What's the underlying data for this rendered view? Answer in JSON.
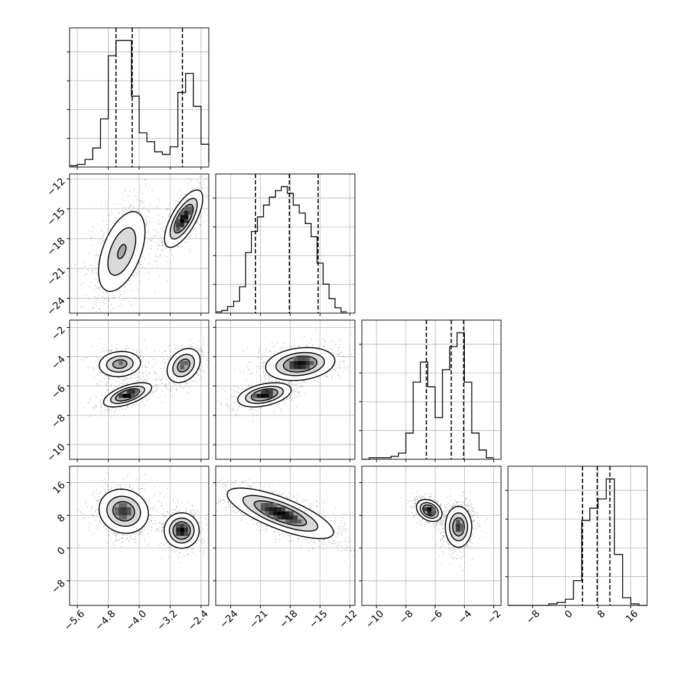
{
  "chart_data": {
    "type": "corner",
    "parameters": 4,
    "grid": true,
    "axes": [
      {
        "index": 0,
        "range": [
          -5.8,
          -2.2
        ],
        "ticks": [
          -5.6,
          -4.8,
          -4.0,
          -3.2,
          -2.4
        ],
        "tick_labels": [
          "−5.6",
          "−4.8",
          "−4.0",
          "−3.2",
          "−2.4"
        ]
      },
      {
        "index": 1,
        "range": [
          -25.5,
          -11.5
        ],
        "ticks": [
          -24,
          -21,
          -18,
          -15,
          -12
        ],
        "tick_labels": [
          "−24",
          "−21",
          "−18",
          "−15",
          "−12"
        ]
      },
      {
        "index": 2,
        "range": [
          -11.0,
          -1.5
        ],
        "ticks": [
          -10,
          -8,
          -6,
          -4,
          -2
        ],
        "tick_labels": [
          "−10",
          "−8",
          "−6",
          "−4",
          "−2"
        ]
      },
      {
        "index": 3,
        "range": [
          -14,
          20
        ],
        "ticks": [
          -8,
          0,
          8,
          16
        ],
        "tick_labels": [
          "−8",
          "0",
          "8",
          "16"
        ]
      }
    ],
    "histograms": [
      {
        "param": 0,
        "bins": [
          -5.8,
          -5.6,
          -5.4,
          -5.2,
          -5.0,
          -4.8,
          -4.6,
          -4.4,
          -4.2,
          -4.0,
          -3.8,
          -3.6,
          -3.4,
          -3.2,
          -3.0,
          -2.8,
          -2.6,
          -2.4,
          -2.2
        ],
        "counts": [
          1,
          2,
          6,
          15,
          38,
          88,
          100,
          100,
          56,
          27,
          20,
          12,
          10,
          16,
          59,
          74,
          48,
          18,
          4
        ],
        "quantiles": [
          -4.6,
          -4.18,
          -2.88
        ]
      },
      {
        "param": 1,
        "bins": [
          -25.5,
          -24.9,
          -24.3,
          -23.7,
          -23.1,
          -22.5,
          -21.9,
          -21.3,
          -20.7,
          -20.1,
          -19.5,
          -18.9,
          -18.3,
          -17.7,
          -17.1,
          -16.5,
          -15.9,
          -15.3,
          -14.7,
          -14.1,
          -13.5,
          -12.9,
          -12.3
        ],
        "counts": [
          1,
          2,
          5,
          9,
          20,
          46,
          62,
          73,
          82,
          88,
          93,
          96,
          91,
          82,
          76,
          68,
          58,
          38,
          22,
          11,
          4,
          1
        ],
        "quantiles": [
          -21.5,
          -18.1,
          -15.2
        ]
      },
      {
        "param": 2,
        "bins": [
          -11.0,
          -10.5,
          -10.0,
          -9.5,
          -9.0,
          -8.5,
          -8.0,
          -7.5,
          -7.0,
          -6.5,
          -6.0,
          -5.5,
          -5.0,
          -4.5,
          -4.0,
          -3.5,
          -3.0,
          -2.5,
          -2.0
        ],
        "counts": [
          0,
          1,
          1,
          1,
          2,
          4,
          17,
          50,
          63,
          47,
          27,
          58,
          73,
          82,
          50,
          17,
          6,
          1
        ],
        "quantiles": [
          -6.6,
          -4.9,
          -4.05
        ]
      },
      {
        "param": 3,
        "bins": [
          -14,
          -12,
          -10,
          -8,
          -6,
          -4,
          -2,
          0,
          2,
          4,
          6,
          8,
          10,
          12,
          14,
          16,
          18,
          20
        ],
        "counts": [
          0,
          0,
          0,
          0,
          0,
          1,
          2,
          4,
          16,
          55,
          63,
          69,
          82,
          33,
          5,
          1,
          0
        ],
        "quantiles": [
          4.2,
          7.8,
          10.9
        ]
      }
    ],
    "joint": [
      {
        "x": 0,
        "y": 1,
        "blobs": [
          {
            "cx": -4.45,
            "cy": -19.3,
            "sx": 0.33,
            "sy": 2.2,
            "rho": 0.5,
            "w": 0.62
          },
          {
            "cx": -2.85,
            "cy": -16.0,
            "sx": 0.24,
            "sy": 1.4,
            "rho": 0.7,
            "w": 0.38
          }
        ]
      },
      {
        "x": 0,
        "y": 2,
        "blobs": [
          {
            "cx": -4.5,
            "cy": -4.5,
            "sx": 0.28,
            "sy": 0.45,
            "rho": 0.1,
            "w": 0.32
          },
          {
            "cx": -4.3,
            "cy": -6.6,
            "sx": 0.3,
            "sy": 0.4,
            "rho": 0.6,
            "w": 0.34
          },
          {
            "cx": -2.85,
            "cy": -4.6,
            "sx": 0.22,
            "sy": 0.6,
            "rho": 0.3,
            "w": 0.34
          }
        ]
      },
      {
        "x": 1,
        "y": 2,
        "blobs": [
          {
            "cx": -17.0,
            "cy": -4.5,
            "sx": 1.7,
            "sy": 0.55,
            "rho": 0.2,
            "w": 0.65
          },
          {
            "cx": -20.6,
            "cy": -6.6,
            "sx": 1.3,
            "sy": 0.4,
            "rho": 0.4,
            "w": 0.35
          }
        ]
      },
      {
        "x": 0,
        "y": 3,
        "blobs": [
          {
            "cx": -4.4,
            "cy": 9.0,
            "sx": 0.32,
            "sy": 2.7,
            "rho": -0.1,
            "w": 0.62
          },
          {
            "cx": -2.9,
            "cy": 4.3,
            "sx": 0.22,
            "sy": 2.1,
            "rho": 0.0,
            "w": 0.38
          }
        ]
      },
      {
        "x": 1,
        "y": 3,
        "blobs": [
          {
            "cx": -19.0,
            "cy": 8.5,
            "sx": 2.6,
            "sy": 3.0,
            "rho": -0.75,
            "w": 1.0
          }
        ]
      },
      {
        "x": 2,
        "y": 3,
        "blobs": [
          {
            "cx": -6.4,
            "cy": 9.2,
            "sx": 0.42,
            "sy": 1.3,
            "rho": -0.3,
            "w": 0.35
          },
          {
            "cx": -4.4,
            "cy": 5.2,
            "sx": 0.45,
            "sy": 2.5,
            "rho": 0.0,
            "w": 0.65
          }
        ]
      }
    ],
    "title": "",
    "legend": "none"
  }
}
